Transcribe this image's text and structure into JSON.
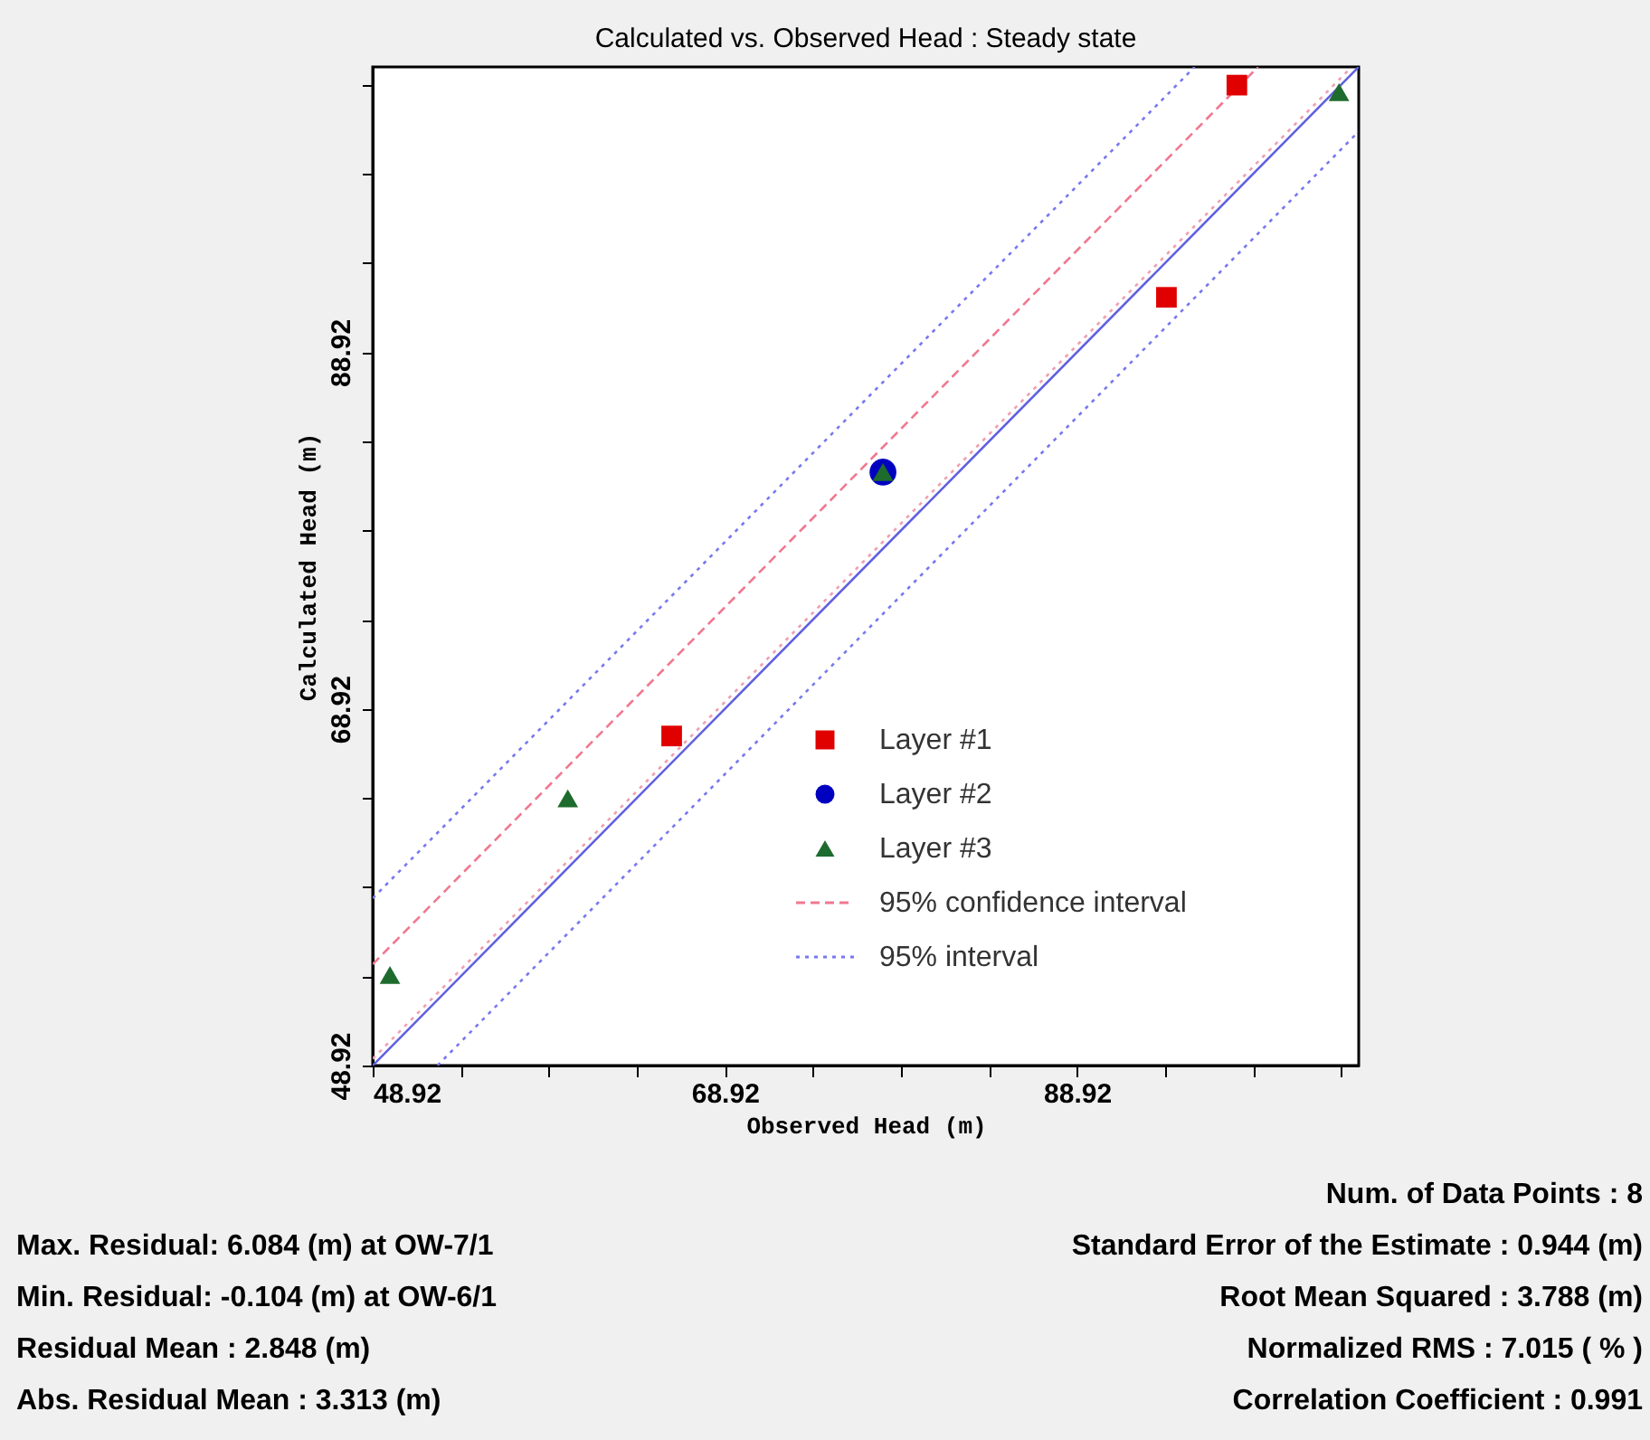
{
  "chart_data": {
    "type": "scatter",
    "title": "Calculated vs. Observed Head : Steady state",
    "xlabel": "Observed Head (m)",
    "ylabel": "Calculated Head (m)",
    "xlim": [
      48.92,
      104.92
    ],
    "ylim": [
      48.92,
      104.92
    ],
    "xticks": [
      48.92,
      {
        "value": 53.92,
        "label": null
      },
      {
        "value": 58.92,
        "label": null
      },
      {
        "value": 63.92,
        "label": null
      },
      68.92,
      {
        "value": 73.92,
        "label": null
      },
      {
        "value": 78.92,
        "label": null
      },
      {
        "value": 83.92,
        "label": null
      },
      88.92,
      {
        "value": 93.92,
        "label": null
      },
      {
        "value": 98.92,
        "label": null
      },
      {
        "value": 103.92,
        "label": null
      }
    ],
    "yticks": [
      48.92,
      {
        "value": 53.92,
        "label": null
      },
      {
        "value": 58.92,
        "label": null
      },
      {
        "value": 63.92,
        "label": null
      },
      68.92,
      {
        "value": 73.92,
        "label": null
      },
      {
        "value": 78.92,
        "label": null
      },
      {
        "value": 83.92,
        "label": null
      },
      88.92,
      {
        "value": 93.92,
        "label": null
      },
      {
        "value": 98.92,
        "label": null
      },
      {
        "value": 103.92,
        "label": null
      }
    ],
    "grid": false,
    "legend": "bottom right",
    "series": [
      {
        "type": "line",
        "color": "#6060e0",
        "line_style": "solid",
        "x": [
          48.92,
          104.92
        ],
        "values": [
          48.92,
          104.92
        ]
      },
      {
        "type": "line",
        "name": "95% confidence interval",
        "color": "#f07890",
        "line_style": "dashed",
        "x": [
          48.92,
          99.2
        ],
        "values": [
          54.6,
          104.92
        ]
      },
      {
        "type": "line",
        "color": "#f0a0b0",
        "line_style": "dotted",
        "x": [
          48.92,
          104.5
        ],
        "values": [
          49.3,
          104.9
        ]
      },
      {
        "type": "line",
        "name": "95% interval",
        "color": "#7878f0",
        "line_style": "dotted",
        "x": [
          48.92,
          95.6
        ],
        "values": [
          58.3,
          104.92
        ]
      },
      {
        "type": "line",
        "color": "#7878f0",
        "line_style": "dotted",
        "x": [
          52.6,
          104.92
        ],
        "values": [
          48.92,
          101.3
        ]
      },
      {
        "name": "Layer #1",
        "color": "#e00000",
        "marker": "square",
        "x": [
          98.0,
          94.0,
          65.9
        ],
        "values": [
          103.9,
          92.0,
          67.4
        ]
      },
      {
        "name": "Layer #2",
        "color": "#0000c0",
        "marker": "circle",
        "x": [
          77.9
        ],
        "values": [
          82.2
        ]
      },
      {
        "name": "Layer #3",
        "color": "#1e6b2e",
        "marker": "triangle",
        "x": [
          103.8,
          77.9,
          60.0,
          49.9
        ],
        "values": [
          103.5,
          82.2,
          63.9,
          54.0
        ]
      }
    ],
    "annotations": [
      "Max. Residual: 6.084 (m) at OW-7/1",
      "Min. Residual: -0.104 (m) at OW-6/1",
      "Residual Mean : 2.848 (m)",
      "Abs. Residual Mean : 3.313 (m)",
      "Num. of Data Points : 8",
      "Standard Error of the Estimate : 0.944 (m)",
      "Root Mean Squared : 3.788 (m)",
      "Normalized RMS : 7.015 ( % )",
      "Correlation Coefficient : 0.991"
    ]
  }
}
